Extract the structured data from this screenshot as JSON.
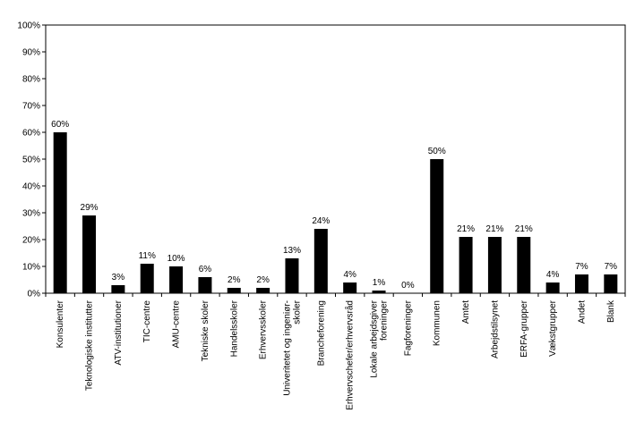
{
  "chart_data": {
    "type": "bar",
    "categories": [
      [
        "Konsulenter"
      ],
      [
        "Teknologiske institutter"
      ],
      [
        "ATV-institutioner"
      ],
      [
        "TIC-centre"
      ],
      [
        "AMU-centre"
      ],
      [
        "Tekniske skoler"
      ],
      [
        "Handelsskoler"
      ],
      [
        "Erhvervsskoler"
      ],
      [
        "Univeritetet og ingeniør-",
        "skoler"
      ],
      [
        "Brancheforening"
      ],
      [
        "Erhvervschefer/erhvervsråd"
      ],
      [
        "Lokale arbejdsgiver",
        "foreninger"
      ],
      [
        "Fagforeninger"
      ],
      [
        "Kommunen"
      ],
      [
        "Amtet"
      ],
      [
        "Arbejdstilsynet"
      ],
      [
        "ERFA-grupper"
      ],
      [
        "Vækstgrupper"
      ],
      [
        "Andet"
      ],
      [
        "Blank"
      ]
    ],
    "values": [
      60,
      29,
      3,
      11,
      10,
      6,
      2,
      2,
      13,
      24,
      4,
      1,
      0,
      50,
      21,
      21,
      21,
      4,
      7,
      7
    ],
    "data_labels": [
      "60%",
      "29%",
      "3%",
      "11%",
      "10%",
      "6%",
      "2%",
      "2%",
      "13%",
      "24%",
      "4%",
      "1%",
      "0%",
      "50%",
      "21%",
      "21%",
      "21%",
      "4%",
      "7%",
      "7%"
    ],
    "y_ticks": [
      "0%",
      "10%",
      "20%",
      "30%",
      "40%",
      "50%",
      "60%",
      "70%",
      "80%",
      "90%",
      "100%"
    ],
    "ylim": [
      0,
      100
    ],
    "grid": false,
    "legend": "none",
    "bar_color": "#000000",
    "title": "",
    "xlabel": "",
    "ylabel": ""
  }
}
